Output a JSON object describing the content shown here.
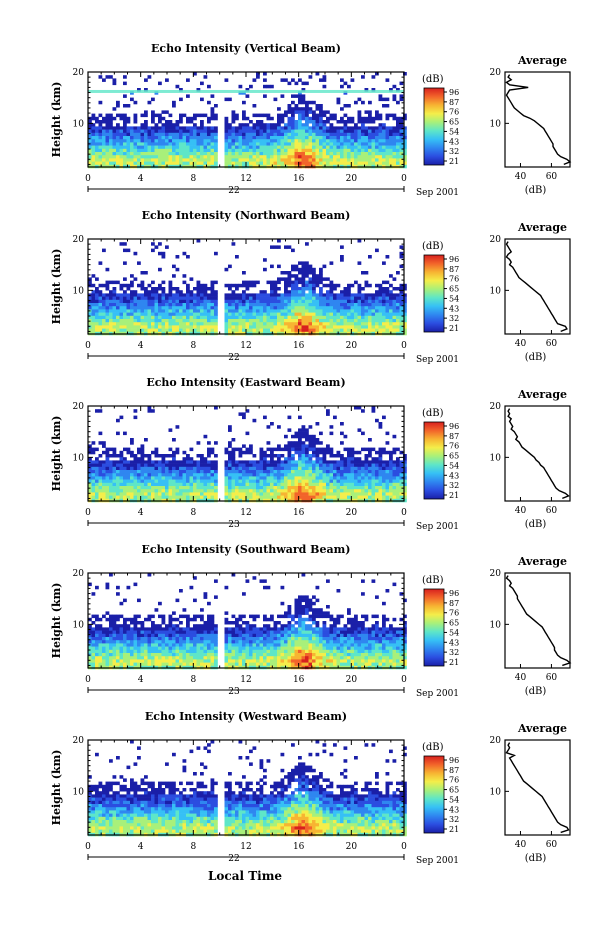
{
  "figure": {
    "x_axis_title": "Local Time",
    "date_label": "Sep 2001",
    "colorbar_unit": "(dB)",
    "colorbar_ticks": [
      "96",
      "87",
      "76",
      "65",
      "54",
      "43",
      "32",
      "21"
    ],
    "profile_title": "Average",
    "profile_xlabel": "(dB)",
    "colormap": [
      "#1a1fa8",
      "#2b4de0",
      "#2f86f0",
      "#36c0f5",
      "#5ee6c8",
      "#a8f07a",
      "#f4ee4a",
      "#f7b432",
      "#f2642a",
      "#d8201e"
    ]
  },
  "chart_data": [
    {
      "type": "heatmap",
      "title": "Echo Intensity (Vertical Beam)",
      "ylabel": "Height (km)",
      "x_ticks": [
        "0",
        "4",
        "8",
        "12",
        "16",
        "20",
        "0"
      ],
      "day_label": "22",
      "y_ticks": [
        "20",
        "10"
      ],
      "xlim": [
        0,
        24
      ],
      "ylim": [
        1.5,
        20
      ],
      "gap_hours": [
        9.9,
        10.2
      ],
      "colorbar_range_db": [
        21,
        96
      ],
      "profile": {
        "x_ticks": [
          "40",
          "60"
        ],
        "xlim": [
          30,
          72
        ],
        "y_ticks": [
          "20",
          "10"
        ],
        "height_km": [
          19.5,
          19,
          18.5,
          18,
          17.5,
          17,
          16.5,
          16,
          15.5,
          15,
          14.5,
          14,
          13.5,
          13,
          12.5,
          12,
          11.5,
          11,
          10.5,
          10,
          9.5,
          9,
          8.5,
          8,
          7.5,
          7,
          6.5,
          6,
          5.5,
          5,
          4.5,
          4,
          3.5,
          3,
          2.5,
          2
        ],
        "avg_db": [
          33,
          32,
          34,
          31,
          33,
          45,
          33,
          32,
          31,
          32,
          33,
          34,
          35,
          36,
          38,
          40,
          42,
          46,
          49,
          51,
          53,
          55,
          56,
          57,
          58,
          59,
          60,
          61,
          61,
          62,
          63,
          64,
          66,
          70,
          72,
          68
        ]
      }
    },
    {
      "type": "heatmap",
      "title": "Echo Intensity (Northward Beam)",
      "ylabel": "Height (km)",
      "x_ticks": [
        "0",
        "4",
        "8",
        "12",
        "16",
        "20",
        "0"
      ],
      "day_label": "22",
      "y_ticks": [
        "20",
        "10"
      ],
      "xlim": [
        0,
        24
      ],
      "ylim": [
        1.5,
        20
      ],
      "gap_hours": [
        9.9,
        10.2
      ],
      "colorbar_range_db": [
        21,
        96
      ],
      "profile": {
        "x_ticks": [
          "40",
          "60"
        ],
        "xlim": [
          30,
          72
        ],
        "y_ticks": [
          "20",
          "10"
        ],
        "height_km": [
          19.5,
          19,
          18.5,
          18,
          17.5,
          17,
          16.5,
          16,
          15.5,
          15,
          14.5,
          14,
          13.5,
          13,
          12.5,
          12,
          11.5,
          11,
          10.5,
          10,
          9.5,
          9,
          8.5,
          8,
          7.5,
          7,
          6.5,
          6,
          5.5,
          5,
          4.5,
          4,
          3.5,
          3,
          2.5,
          2
        ],
        "avg_db": [
          32,
          31,
          32,
          33,
          34,
          32,
          31,
          33,
          34,
          33,
          35,
          36,
          37,
          38,
          39,
          41,
          43,
          45,
          47,
          49,
          51,
          53,
          54,
          55,
          56,
          57,
          58,
          59,
          60,
          61,
          62,
          63,
          64,
          69,
          70,
          66
        ]
      }
    },
    {
      "type": "heatmap",
      "title": "Echo Intensity (Eastward Beam)",
      "ylabel": "Height (km)",
      "x_ticks": [
        "0",
        "4",
        "8",
        "12",
        "16",
        "20",
        "0"
      ],
      "day_label": "23",
      "y_ticks": [
        "20",
        "10"
      ],
      "xlim": [
        0,
        24
      ],
      "ylim": [
        1.5,
        20
      ],
      "gap_hours": [
        9.9,
        10.2
      ],
      "colorbar_range_db": [
        21,
        96
      ],
      "profile": {
        "x_ticks": [
          "40",
          "60"
        ],
        "xlim": [
          30,
          72
        ],
        "y_ticks": [
          "20",
          "10"
        ],
        "height_km": [
          19.5,
          19,
          18.5,
          18,
          17.5,
          17,
          16.5,
          16,
          15.5,
          15,
          14.5,
          14,
          13.5,
          13,
          12.5,
          12,
          11.5,
          11,
          10.5,
          10,
          9.5,
          9,
          8.5,
          8,
          7.5,
          7,
          6.5,
          6,
          5.5,
          5,
          4.5,
          4,
          3.5,
          3,
          2.5,
          2
        ],
        "avg_db": [
          33,
          32,
          33,
          32,
          34,
          33,
          34,
          35,
          34,
          36,
          37,
          38,
          37,
          39,
          40,
          41,
          43,
          45,
          47,
          49,
          50,
          52,
          53,
          55,
          56,
          57,
          58,
          59,
          60,
          61,
          62,
          63,
          65,
          69,
          71,
          67
        ]
      }
    },
    {
      "type": "heatmap",
      "title": "Echo Intensity (Southward Beam)",
      "ylabel": "Height (km)",
      "x_ticks": [
        "0",
        "4",
        "8",
        "12",
        "16",
        "20",
        "0"
      ],
      "day_label": "23",
      "y_ticks": [
        "20",
        "10"
      ],
      "xlim": [
        0,
        24
      ],
      "ylim": [
        1.5,
        20
      ],
      "gap_hours": [
        9.9,
        10.2
      ],
      "colorbar_range_db": [
        21,
        96
      ],
      "profile": {
        "x_ticks": [
          "40",
          "60"
        ],
        "xlim": [
          30,
          72
        ],
        "y_ticks": [
          "20",
          "10"
        ],
        "height_km": [
          19.5,
          19,
          18.5,
          18,
          17.5,
          17,
          16.5,
          16,
          15.5,
          15,
          14.5,
          14,
          13.5,
          13,
          12.5,
          12,
          11.5,
          11,
          10.5,
          10,
          9.5,
          9,
          8.5,
          8,
          7.5,
          7,
          6.5,
          6,
          5.5,
          5,
          4.5,
          4,
          3.5,
          3,
          2.5,
          2
        ],
        "avg_db": [
          32,
          31,
          33,
          34,
          33,
          35,
          36,
          37,
          38,
          38,
          39,
          40,
          41,
          42,
          43,
          44,
          46,
          48,
          50,
          52,
          54,
          55,
          56,
          57,
          58,
          59,
          60,
          61,
          62,
          62,
          63,
          64,
          66,
          70,
          72,
          67
        ]
      }
    },
    {
      "type": "heatmap",
      "title": "Echo Intensity (Westward Beam)",
      "ylabel": "Height (km)",
      "x_ticks": [
        "0",
        "4",
        "8",
        "12",
        "16",
        "20",
        "0"
      ],
      "day_label": "22",
      "y_ticks": [
        "20",
        "10"
      ],
      "xlim": [
        0,
        24
      ],
      "ylim": [
        1.5,
        20
      ],
      "gap_hours": [
        9.9,
        10.2
      ],
      "colorbar_range_db": [
        21,
        96
      ],
      "profile": {
        "x_ticks": [
          "40",
          "60"
        ],
        "xlim": [
          30,
          72
        ],
        "y_ticks": [
          "20",
          "10"
        ],
        "height_km": [
          19.5,
          19,
          18.5,
          18,
          17.5,
          17,
          16.5,
          16,
          15.5,
          15,
          14.5,
          14,
          13.5,
          13,
          12.5,
          12,
          11.5,
          11,
          10.5,
          10,
          9.5,
          9,
          8.5,
          8,
          7.5,
          7,
          6.5,
          6,
          5.5,
          5,
          4.5,
          4,
          3.5,
          3,
          2.5,
          2
        ],
        "avg_db": [
          33,
          32,
          33,
          32,
          31,
          36,
          33,
          34,
          35,
          36,
          37,
          38,
          39,
          40,
          41,
          42,
          44,
          46,
          48,
          50,
          52,
          54,
          55,
          56,
          57,
          58,
          59,
          60,
          61,
          62,
          63,
          64,
          66,
          70,
          71,
          66
        ]
      }
    }
  ]
}
